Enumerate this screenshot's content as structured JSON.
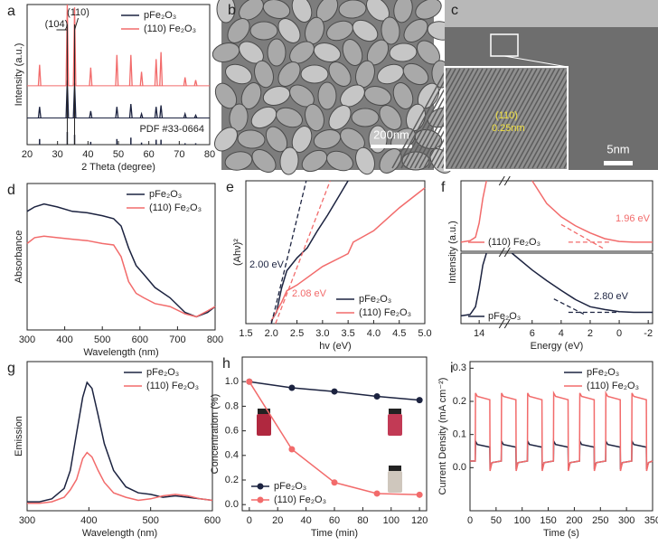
{
  "chart_data": [
    {
      "type": "xrd",
      "panel_label": "a",
      "x_label": "2 Theta (degree)",
      "y_label": "Intensity (a.u.)",
      "xlim": [
        20,
        80
      ],
      "xticks": [
        20,
        30,
        40,
        50,
        60,
        70,
        80
      ],
      "ylim": [
        0,
        100
      ],
      "legend": "upper right",
      "series": [
        {
          "name": "pFe₂O₃",
          "color": "#1c2340",
          "baseline": 19,
          "x": [
            24.1,
            33.2,
            35.6,
            40.9,
            49.5,
            54.1,
            57.6,
            62.4,
            64.0,
            71.9,
            75.4
          ],
          "values": [
            8,
            27,
            25,
            5,
            8,
            10,
            3,
            8,
            9,
            3,
            2
          ]
        },
        {
          "name": "(110) Fe₂O₃",
          "color": "#f26b6b",
          "baseline": 42,
          "x": [
            24.1,
            33.2,
            35.6,
            40.9,
            49.5,
            54.1,
            57.6,
            62.4,
            64.0,
            71.9,
            75.4
          ],
          "values": [
            15,
            58,
            56,
            13,
            22,
            22,
            10,
            19,
            24,
            6,
            4
          ]
        }
      ],
      "reference": {
        "label": "PDF #33-0664",
        "color": "#1c2340",
        "x": [
          24.1,
          33.2,
          35.6,
          40.9,
          49.5,
          54.1,
          57.6,
          62.4,
          64.0,
          71.9,
          75.4
        ],
        "values": [
          4,
          9,
          7,
          2,
          4,
          5,
          1.5,
          3.5,
          3.5,
          1,
          1
        ]
      },
      "annotations": [
        {
          "text": "(104)",
          "x": 33.2
        },
        {
          "text": "(110)",
          "x": 35.6
        }
      ]
    },
    {
      "type": "line",
      "panel_label": "d",
      "x_label": "Wavelength (nm)",
      "y_label": "Absorbance",
      "xlim": [
        300,
        800
      ],
      "xticks": [
        300,
        400,
        500,
        600,
        700,
        800
      ],
      "ylim": [
        0,
        100
      ],
      "legend": "upper right",
      "series": [
        {
          "name": "pFe₂O₃",
          "color": "#1c2340",
          "x": [
            300,
            320,
            345,
            380,
            420,
            460,
            500,
            530,
            550,
            570,
            590,
            610,
            640,
            680,
            720,
            750,
            780,
            800
          ],
          "values": [
            81,
            84,
            86,
            84,
            81,
            80,
            78,
            76,
            71,
            56,
            44,
            38,
            29,
            22,
            12,
            9,
            12,
            16
          ]
        },
        {
          "name": "(110) Fe₂O₃",
          "color": "#f26b6b",
          "x": [
            300,
            320,
            345,
            380,
            420,
            460,
            500,
            530,
            550,
            570,
            590,
            610,
            640,
            680,
            720,
            750,
            780,
            800
          ],
          "values": [
            59,
            63,
            64,
            63,
            62,
            61,
            59,
            58,
            50,
            33,
            25,
            22,
            18,
            16,
            11,
            9,
            13,
            16
          ]
        }
      ]
    },
    {
      "type": "line",
      "panel_label": "e",
      "x_label": "hv (eV)",
      "y_label": "(Ahν)²",
      "xlim": [
        1.5,
        5.0
      ],
      "xticks": [
        1.5,
        {
          "value": 2,
          "label": "2.0"
        },
        2.5,
        {
          "value": 3,
          "label": "3.0"
        },
        3.5,
        {
          "value": 4,
          "label": "4.0"
        },
        4.5,
        {
          "value": 5,
          "label": "5.0"
        }
      ],
      "ylim": [
        0,
        100
      ],
      "legend": "lower right",
      "series": [
        {
          "name": "pFe₂O₃",
          "color": "#1c2340",
          "x": [
            2.0,
            2.1,
            2.2,
            2.3,
            2.5,
            2.7,
            2.9,
            3.1,
            3.3,
            3.5
          ],
          "values": [
            2,
            8,
            25,
            37,
            46,
            53,
            65,
            76,
            88,
            100
          ]
        },
        {
          "name": "(110) Fe₂O₃",
          "color": "#f26b6b",
          "x": [
            2.0,
            2.2,
            2.3,
            2.5,
            3.0,
            3.5,
            3.6,
            4.0,
            4.5,
            5.0
          ],
          "values": [
            2,
            15,
            23,
            27,
            40,
            49,
            57,
            65,
            81,
            95
          ]
        }
      ],
      "fits": [
        {
          "color": "#1c2340",
          "x": [
            2.0,
            2.68
          ],
          "values": [
            0,
            100
          ]
        },
        {
          "color": "#f26b6b",
          "x": [
            2.08,
            3.15
          ],
          "values": [
            0,
            100
          ]
        }
      ],
      "annotations": [
        {
          "text": "2.00 eV",
          "color": "#1c2340"
        },
        {
          "text": "2.08 eV",
          "color": "#f26b6b"
        }
      ]
    },
    {
      "type": "broken_line",
      "panel_label": "f",
      "x_label": "Energy (eV)",
      "y_label": "Intensity (a.u.)",
      "xlim": [
        15,
        -2.3
      ],
      "xbreak": [
        13,
        7.4
      ],
      "xticks": [
        14,
        6,
        4,
        2,
        0,
        -2
      ],
      "ylim": [
        0,
        100
      ],
      "series": [
        {
          "name": "(110) Fe₂O₃",
          "color": "#f26b6b",
          "subplot": 0,
          "x": [
            15,
            14.5,
            14.2,
            14.0,
            13.8,
            13.6,
            null,
            6.0,
            5.0,
            4.0,
            3.0,
            2.0,
            1.0,
            0,
            -1,
            -2,
            -2.3
          ],
          "values": [
            13,
            15,
            20,
            40,
            75,
            100,
            null,
            100,
            68,
            49,
            36,
            26,
            18,
            14,
            13,
            13,
            13
          ]
        },
        {
          "name": "pFe₂O₃",
          "color": "#1c2340",
          "subplot": 1,
          "x": [
            15,
            14.5,
            14.2,
            14.0,
            13.8,
            13.6,
            null,
            7.4,
            6,
            5,
            4,
            3,
            2,
            1,
            0,
            -1,
            -2.3
          ],
          "values": [
            11,
            13,
            24,
            50,
            83,
            100,
            null,
            100,
            76,
            61,
            47,
            34,
            24,
            20,
            17,
            16,
            16
          ]
        }
      ],
      "fits": [
        {
          "subplot": 0,
          "color": "#f26b6b",
          "x": [
            4.0,
            1.0
          ],
          "values": [
            38,
            3
          ]
        },
        {
          "subplot": 0,
          "color": "#f26b6b",
          "x": [
            3.5,
            0.5
          ],
          "values": [
            13,
            13
          ]
        },
        {
          "subplot": 1,
          "color": "#1c2340",
          "x": [
            4.5,
            2.3
          ],
          "values": [
            35,
            12
          ]
        },
        {
          "subplot": 1,
          "color": "#1c2340",
          "x": [
            3.5,
            0
          ],
          "values": [
            16,
            16
          ]
        }
      ],
      "annotations": [
        {
          "text": "1.96 eV",
          "color": "#f26b6b"
        },
        {
          "text": "2.80 eV",
          "color": "#1c2340"
        }
      ]
    },
    {
      "type": "line",
      "panel_label": "g",
      "x_label": "Wavelength (nm)",
      "y_label": "Emission",
      "xlim": [
        300,
        600
      ],
      "xticks": [
        300,
        400,
        500,
        600
      ],
      "ylim": [
        0,
        100
      ],
      "legend": "upper right",
      "series": [
        {
          "name": "pFe₂O₃",
          "color": "#1c2340",
          "x": [
            300,
            320,
            340,
            360,
            370,
            380,
            390,
            397,
            405,
            415,
            425,
            440,
            460,
            480,
            500,
            520,
            540,
            560,
            580,
            600
          ],
          "values": [
            6,
            6,
            8,
            15,
            27,
            52,
            76,
            86,
            82,
            64,
            45,
            27,
            16,
            12,
            11,
            9,
            10,
            9,
            8,
            7
          ]
        },
        {
          "name": "(110) Fe₂O₃",
          "color": "#f26b6b",
          "x": [
            300,
            320,
            340,
            360,
            370,
            380,
            390,
            397,
            405,
            415,
            425,
            440,
            460,
            480,
            500,
            520,
            540,
            560,
            580,
            600
          ],
          "values": [
            5,
            5,
            6,
            9,
            14,
            21,
            35,
            39,
            36,
            27,
            19,
            12,
            9,
            7,
            8,
            10,
            11,
            10,
            8,
            7
          ]
        }
      ]
    },
    {
      "type": "line",
      "panel_label": "h",
      "x_label": "Time (min)",
      "y_label": "Concentration (%)",
      "markers": true,
      "xlim": [
        -5,
        125
      ],
      "xticks": [
        0,
        20,
        40,
        60,
        80,
        100,
        120
      ],
      "ylim": [
        -0.05,
        1.2
      ],
      "yticks": [
        {
          "value": 0,
          "label": "0.0"
        },
        0.2,
        0.4,
        0.6,
        0.8,
        {
          "value": 1,
          "label": "1.0"
        }
      ],
      "legend": "lower left",
      "series": [
        {
          "name": "pFe₂O₃",
          "color": "#1c2340",
          "x": [
            0,
            30,
            60,
            90,
            120
          ],
          "values": [
            1.0,
            0.95,
            0.92,
            0.88,
            0.85
          ]
        },
        {
          "name": "(110) Fe₂O₃",
          "color": "#f26b6b",
          "x": [
            0,
            30,
            60,
            90,
            120
          ],
          "values": [
            1.0,
            0.45,
            0.18,
            0.09,
            0.08
          ]
        }
      ]
    },
    {
      "type": "line",
      "panel_label": "i",
      "x_label": "Time (s)",
      "y_label": "Current Density (mA cm⁻²)",
      "xlim": [
        0,
        350
      ],
      "xticks": [
        0,
        50,
        100,
        150,
        200,
        250,
        300,
        350
      ],
      "ylim": [
        -0.13,
        0.32
      ],
      "yticks": [
        {
          "value": 0,
          "label": "0.0"
        },
        0.1,
        0.2,
        0.3
      ],
      "legend": "upper right",
      "series": [
        {
          "name": "pFe₂O₃",
          "color": "#1c2340",
          "x": [
            0,
            10,
            10.5,
            14,
            38,
            38.5,
            42,
            60,
            60.5,
            64,
            88,
            88.5,
            92,
            110,
            110.5,
            114,
            138,
            138.5,
            142,
            160,
            160.5,
            164,
            188,
            188.5,
            192,
            210,
            210.5,
            214,
            238,
            238.5,
            242,
            260,
            260.5,
            264,
            288,
            288.5,
            292,
            310,
            310.5,
            314,
            338,
            338.5,
            342,
            350
          ],
          "values": [
            0.02,
            0.02,
            0.08,
            0.07,
            0.062,
            -0.005,
            0.015,
            0.02,
            0.08,
            0.07,
            0.062,
            -0.005,
            0.015,
            0.02,
            0.08,
            0.07,
            0.062,
            -0.005,
            0.015,
            0.02,
            0.08,
            0.07,
            0.062,
            -0.005,
            0.015,
            0.02,
            0.08,
            0.07,
            0.062,
            -0.005,
            0.015,
            0.02,
            0.08,
            0.07,
            0.062,
            -0.005,
            0.015,
            0.02,
            0.08,
            0.07,
            0.062,
            -0.005,
            0.015,
            0.02
          ]
        },
        {
          "name": "(110) Fe₂O₃",
          "color": "#f26b6b",
          "x": [
            0,
            10,
            10.5,
            14,
            38,
            38.5,
            42,
            60,
            60.5,
            64,
            88,
            88.5,
            92,
            110,
            110.5,
            114,
            138,
            138.5,
            142,
            160,
            160.5,
            164,
            188,
            188.5,
            192,
            210,
            210.5,
            214,
            238,
            238.5,
            242,
            260,
            260.5,
            264,
            288,
            288.5,
            292,
            310,
            310.5,
            314,
            338,
            338.5,
            342,
            350
          ],
          "values": [
            0.02,
            0.02,
            0.225,
            0.215,
            0.205,
            -0.01,
            0.015,
            0.02,
            0.225,
            0.215,
            0.205,
            -0.01,
            0.015,
            0.02,
            0.225,
            0.215,
            0.205,
            -0.01,
            0.015,
            0.02,
            0.225,
            0.215,
            0.205,
            -0.01,
            0.015,
            0.02,
            0.225,
            0.215,
            0.205,
            -0.01,
            0.015,
            0.02,
            0.225,
            0.215,
            0.205,
            -0.01,
            0.015,
            0.02,
            0.225,
            0.215,
            0.205,
            -0.01,
            0.015,
            0.02
          ]
        }
      ]
    }
  ],
  "images": [
    {
      "panel_label": "b",
      "scale_bar": "200nm"
    },
    {
      "panel_label": "c",
      "scale_bar": "5nm",
      "lattice_plane": "(110)",
      "spacing": "0.25nm"
    }
  ]
}
